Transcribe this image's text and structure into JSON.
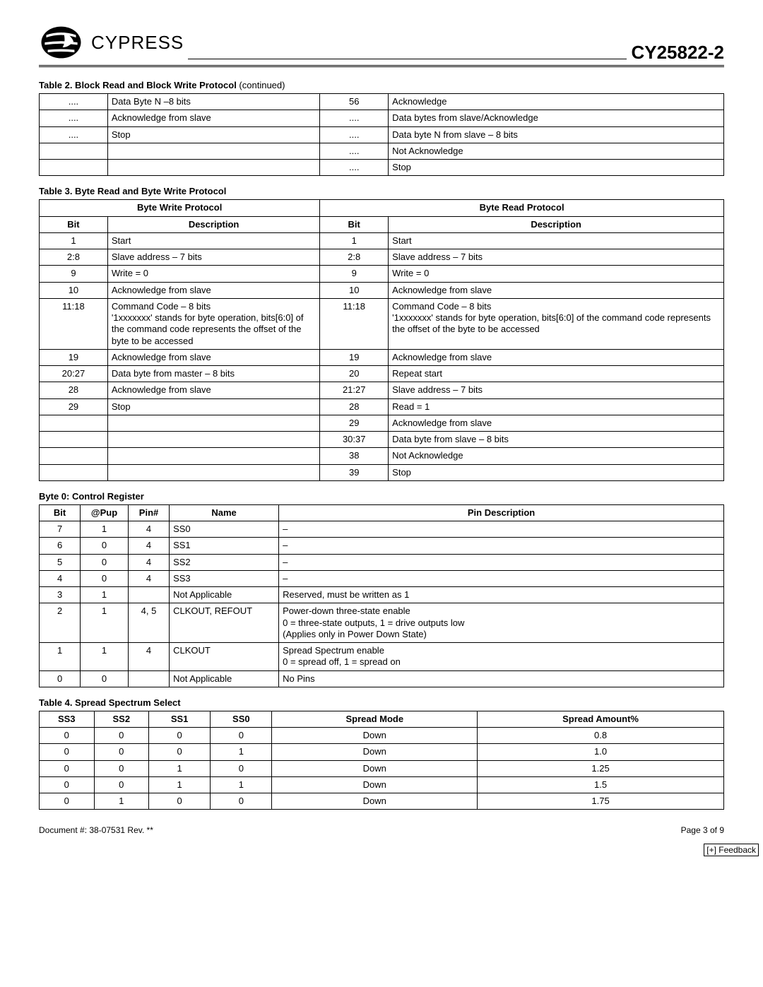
{
  "header": {
    "logo_text": "CYPRESS",
    "part_number": "CY25822-2"
  },
  "table2": {
    "title": "Table 2.  Block Read and Block Write Protocol",
    "continued": "  (continued)",
    "col_widths": [
      "10%",
      "31%",
      "10%",
      "49%"
    ],
    "rows": [
      [
        "....",
        "Data Byte N –8 bits",
        "56",
        "Acknowledge"
      ],
      [
        "....",
        "Acknowledge from slave",
        "....",
        "Data bytes from slave/Acknowledge"
      ],
      [
        "....",
        "Stop",
        "....",
        "Data byte N from slave – 8 bits"
      ],
      [
        "",
        "",
        "....",
        "Not Acknowledge"
      ],
      [
        "",
        "",
        "....",
        "Stop"
      ]
    ]
  },
  "table3": {
    "title": "Table 3.  Byte Read and Byte Write Protocol",
    "head_left": "Byte Write Protocol",
    "head_right": "Byte Read Protocol",
    "sub_heads": [
      "Bit",
      "Description",
      "Bit",
      "Description"
    ],
    "col_widths": [
      "10%",
      "31%",
      "10%",
      "49%"
    ],
    "rows": [
      [
        "1",
        "Start",
        "1",
        "Start"
      ],
      [
        "2:8",
        "Slave address – 7 bits",
        "2:8",
        "Slave address – 7 bits"
      ],
      [
        "9",
        "Write = 0",
        "9",
        "Write = 0"
      ],
      [
        "10",
        "Acknowledge from slave",
        "10",
        "Acknowledge from slave"
      ],
      [
        "11:18",
        "Command Code – 8 bits\n'1xxxxxxx' stands for byte operation, bits[6:0] of the command code represents the offset of the byte to be accessed",
        "11:18",
        "Command Code – 8 bits\n'1xxxxxxx' stands for byte operation, bits[6:0] of the command code represents the offset of the byte to be accessed"
      ],
      [
        "19",
        "Acknowledge from slave",
        "19",
        "Acknowledge from slave"
      ],
      [
        "20:27",
        "Data byte from master – 8 bits",
        "20",
        "Repeat start"
      ],
      [
        "28",
        "Acknowledge from slave",
        "21:27",
        "Slave address – 7 bits"
      ],
      [
        "29",
        "Stop",
        "28",
        "Read = 1"
      ],
      [
        "",
        "",
        "29",
        "Acknowledge from slave"
      ],
      [
        "",
        "",
        "30:37",
        "Data byte from slave – 8 bits"
      ],
      [
        "",
        "",
        "38",
        "Not Acknowledge"
      ],
      [
        "",
        "",
        "39",
        "Stop"
      ]
    ]
  },
  "byte0": {
    "title": "Byte 0: Control Register",
    "heads": [
      "Bit",
      "@Pup",
      "Pin#",
      "Name",
      "Pin Description"
    ],
    "col_widths": [
      "6%",
      "7%",
      "6%",
      "16%",
      "65%"
    ],
    "rows": [
      [
        "7",
        "1",
        "4",
        "SS0",
        "–"
      ],
      [
        "6",
        "0",
        "4",
        "SS1",
        "–"
      ],
      [
        "5",
        "0",
        "4",
        "SS2",
        "–"
      ],
      [
        "4",
        "0",
        "4",
        "SS3",
        "–"
      ],
      [
        "3",
        "1",
        "",
        "Not Applicable",
        "Reserved, must be written as 1"
      ],
      [
        "2",
        "1",
        "4, 5",
        "CLKOUT, REFOUT",
        "Power-down three-state enable\n0 = three-state outputs, 1 = drive outputs low\n(Applies only in Power Down State)"
      ],
      [
        "1",
        "1",
        "4",
        "CLKOUT",
        "Spread Spectrum enable\n0 = spread off, 1 = spread on"
      ],
      [
        "0",
        "0",
        "",
        "Not Applicable",
        "No Pins"
      ]
    ]
  },
  "table4": {
    "title": "Table 4.  Spread Spectrum Select",
    "heads": [
      "SS3",
      "SS2",
      "SS1",
      "SS0",
      "Spread Mode",
      "Spread Amount%"
    ],
    "col_widths": [
      "8%",
      "8%",
      "9%",
      "9%",
      "30%",
      "36%"
    ],
    "rows": [
      [
        "0",
        "0",
        "0",
        "0",
        "Down",
        "0.8"
      ],
      [
        "0",
        "0",
        "0",
        "1",
        "Down",
        "1.0"
      ],
      [
        "0",
        "0",
        "1",
        "0",
        "Down",
        "1.25"
      ],
      [
        "0",
        "0",
        "1",
        "1",
        "Down",
        "1.5"
      ],
      [
        "0",
        "1",
        "0",
        "0",
        "Down",
        "1.75"
      ]
    ]
  },
  "footer": {
    "doc": "Document #: 38-07531  Rev. **",
    "page": "Page 3 of 9",
    "feedback": "[+] Feedback"
  }
}
